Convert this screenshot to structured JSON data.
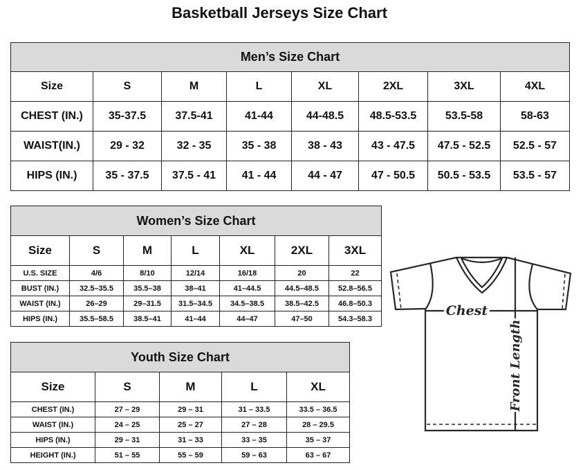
{
  "title": "Basketball Jerseys Size Chart",
  "men": {
    "caption": "Men’s Size Chart",
    "header": [
      "Size",
      "S",
      "M",
      "L",
      "XL",
      "2XL",
      "3XL",
      "4XL"
    ],
    "rows": [
      [
        "CHEST (IN.)",
        "35-37.5",
        "37.5-41",
        "41-44",
        "44-48.5",
        "48.5-53.5",
        "53.5-58",
        "58-63"
      ],
      [
        "WAIST(IN.)",
        "29 - 32",
        "32 - 35",
        "35 - 38",
        "38 - 43",
        "43 - 47.5",
        "47.5 - 52.5",
        "52.5 - 57"
      ],
      [
        "HIPS (IN.)",
        "35 - 37.5",
        "37.5 - 41",
        "41 - 44",
        "44 - 47",
        "47 - 50.5",
        "50.5 - 53.5",
        "53.5 - 57"
      ]
    ]
  },
  "women": {
    "caption": "Women’s Size Chart",
    "header": [
      "Size",
      "S",
      "M",
      "L",
      "XL",
      "2XL",
      "3XL"
    ],
    "rows": [
      [
        "U.S.  SIZE",
        "4/6",
        "8/10",
        "12/14",
        "16/18",
        "20",
        "22"
      ],
      [
        "BUST  (IN.)",
        "32.5–35.5",
        "35.5–38",
        "38–41",
        "41–44.5",
        "44.5–48.5",
        "52.8–56.5"
      ],
      [
        "WAIST  (IN.)",
        "26–29",
        "29–31.5",
        "31.5–34.5",
        "34.5–38.5",
        "38.5–42.5",
        "46.8–50.3"
      ],
      [
        "HIPS  (IN.)",
        "35.5–58.5",
        "38.5–41",
        "41–44",
        "44–47",
        "47–50",
        "54.3–58.3"
      ]
    ]
  },
  "youth": {
    "caption": "Youth Size Chart",
    "header": [
      "Size",
      "S",
      "M",
      "L",
      "XL"
    ],
    "rows": [
      [
        "CHEST  (IN.)",
        "27  –  29",
        "29  –  31",
        "31  –  33.5",
        "33.5  –  36.5"
      ],
      [
        "WAIST  (IN.)",
        "24  –  25",
        "25  –  27",
        "27  –  28",
        "28  –  29.5"
      ],
      [
        "HIPS  (IN.)",
        "29  –  31",
        "31  –  33",
        "33  –  35",
        "35  –  37"
      ],
      [
        "HEIGHT  (IN.)",
        "51  –  55",
        "55  –  59",
        "59  –  63",
        "63  –  67"
      ]
    ]
  },
  "diagram": {
    "chest_label": "Chest",
    "length_label": "Front Length"
  }
}
